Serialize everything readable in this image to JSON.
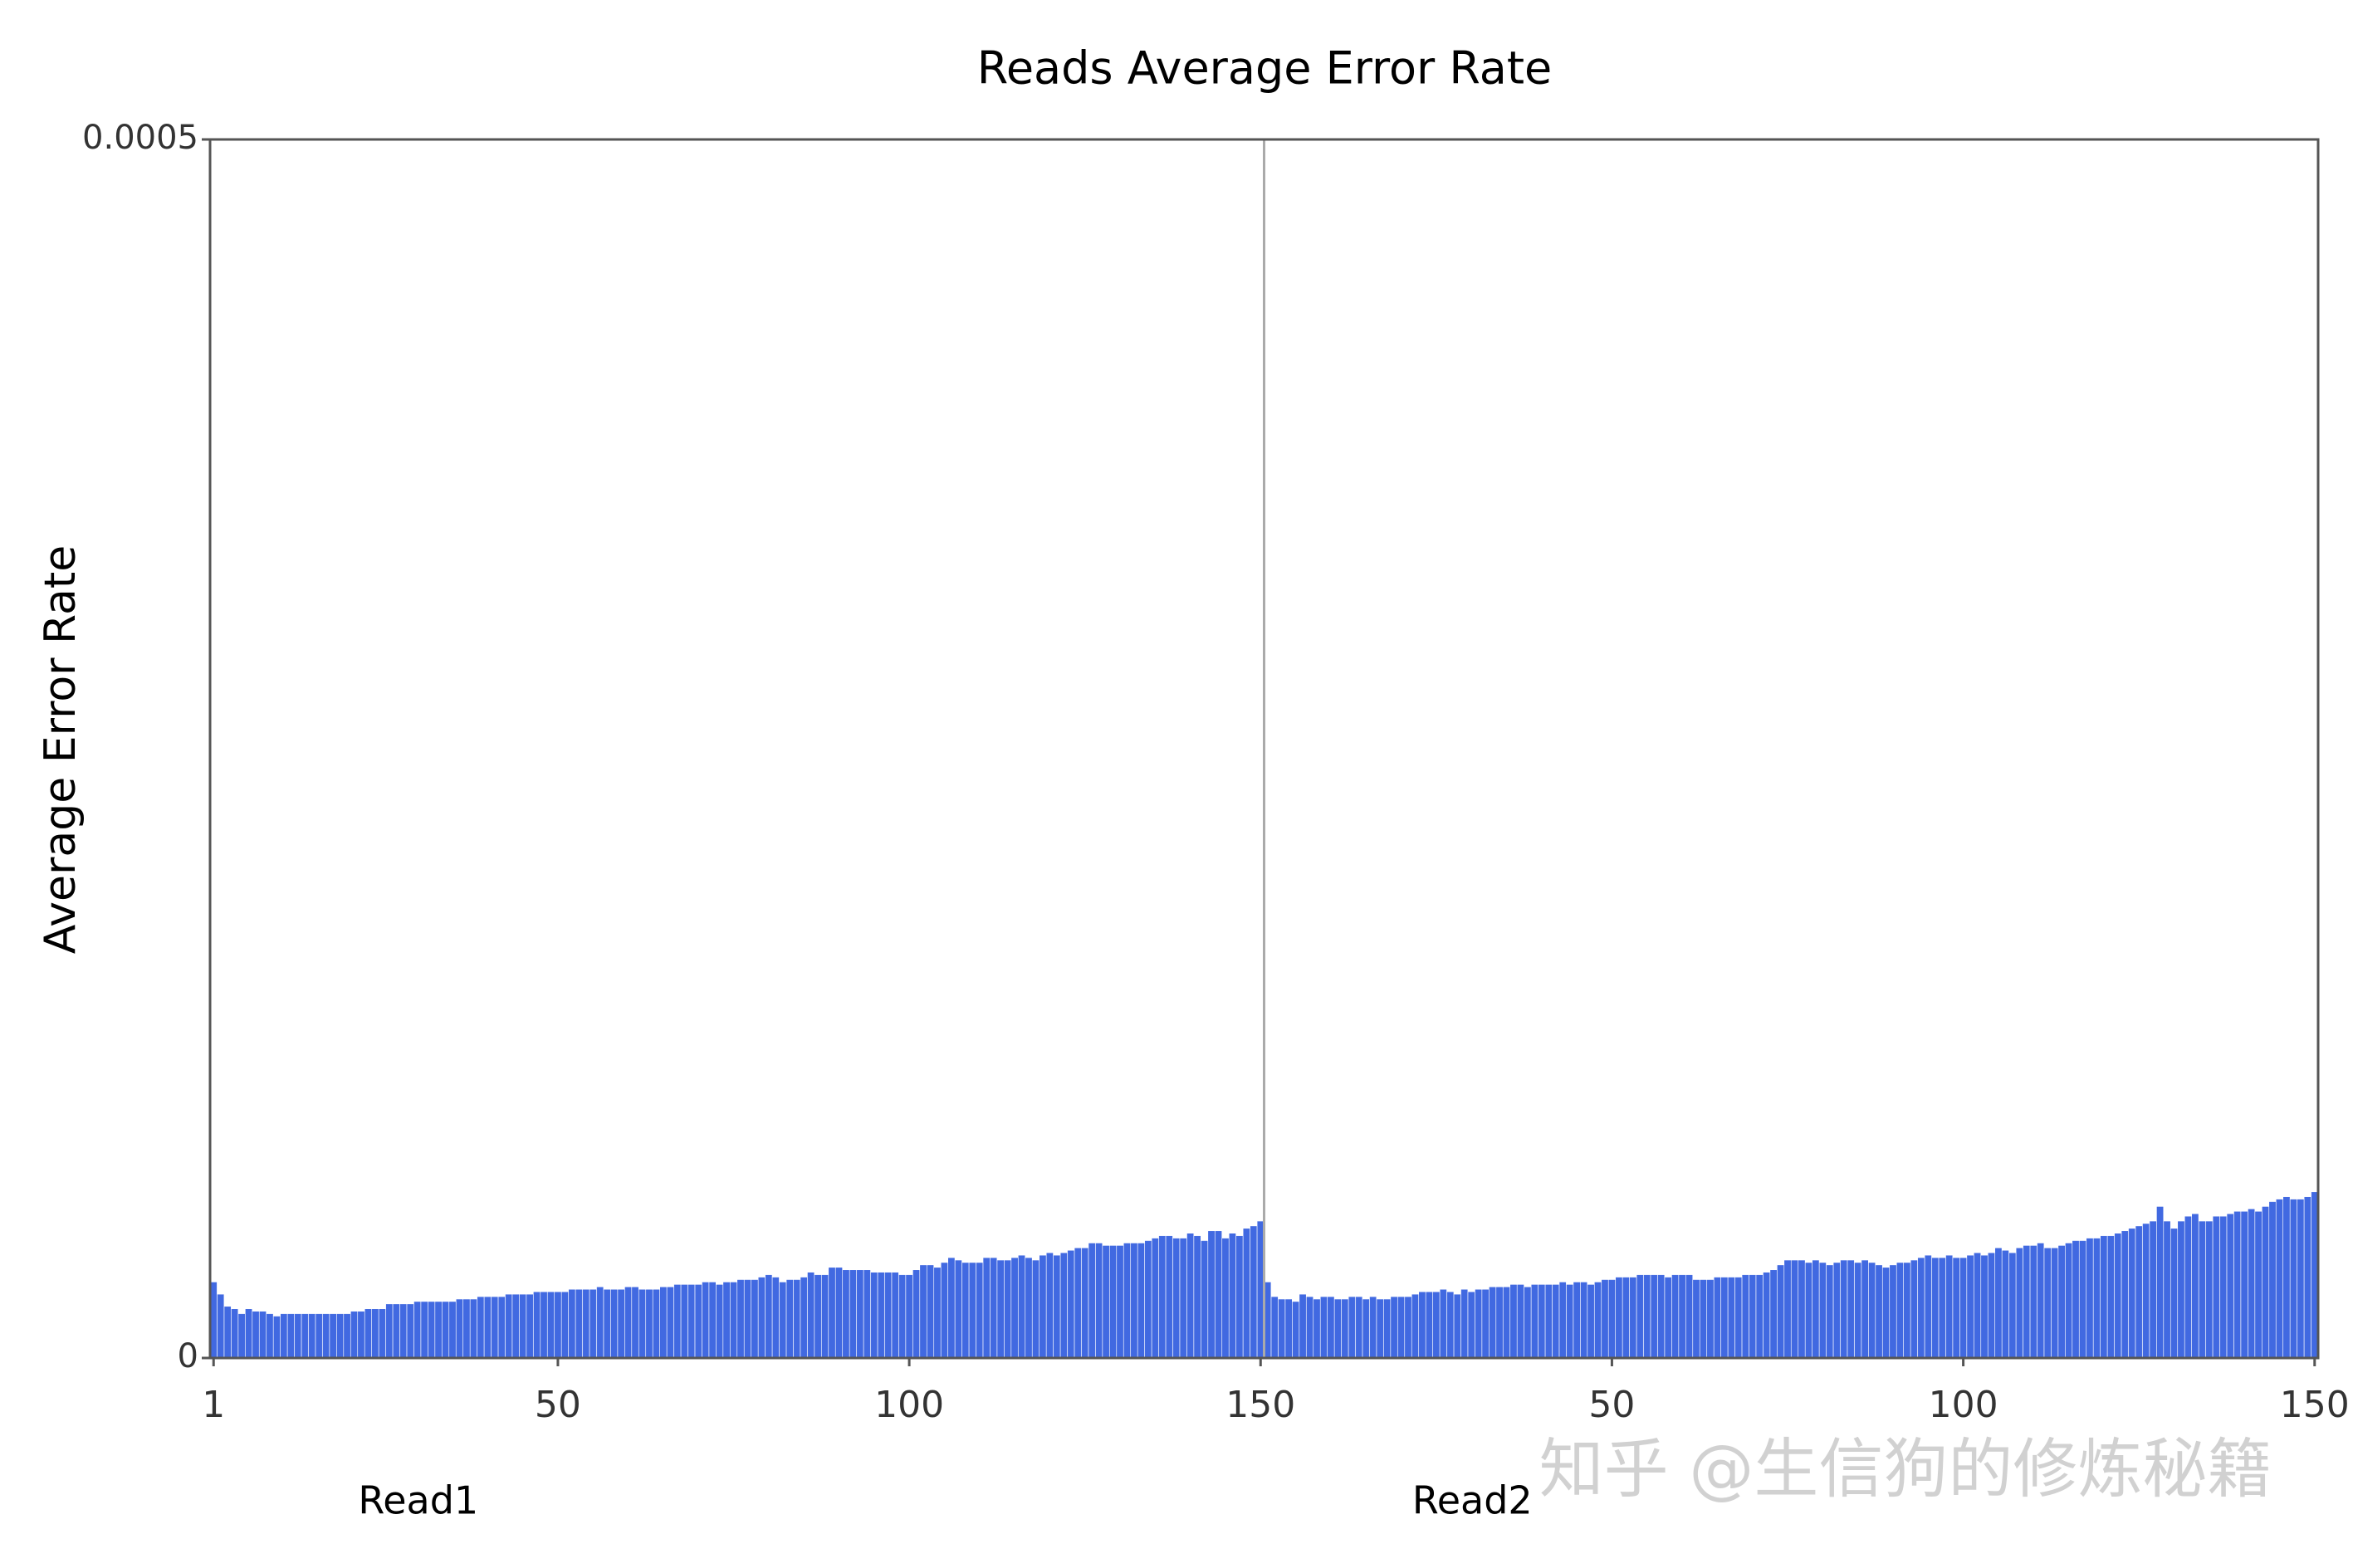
{
  "chart_data": {
    "type": "bar",
    "title": "Reads Average Error Rate",
    "y_label": "Average Error Rate",
    "color": "#4169e1",
    "ylim": [
      0,
      0.0005
    ],
    "yticks": [
      0,
      0.0005
    ],
    "watermark": "知乎 @生信狗的修炼秘籍",
    "panels": [
      {
        "name": "Read1",
        "xticks": [
          1,
          50,
          100,
          150
        ],
        "values": [
          3.1e-05,
          2.6e-05,
          2.1e-05,
          2e-05,
          1.8e-05,
          2e-05,
          1.9e-05,
          1.9e-05,
          1.8e-05,
          1.7e-05,
          1.8e-05,
          1.8e-05,
          1.8e-05,
          1.8e-05,
          1.8e-05,
          1.8e-05,
          1.8e-05,
          1.8e-05,
          1.8e-05,
          1.8e-05,
          1.9e-05,
          1.9e-05,
          2e-05,
          2e-05,
          2e-05,
          2.2e-05,
          2.2e-05,
          2.2e-05,
          2.2e-05,
          2.3e-05,
          2.3e-05,
          2.3e-05,
          2.3e-05,
          2.3e-05,
          2.3e-05,
          2.4e-05,
          2.4e-05,
          2.4e-05,
          2.5e-05,
          2.5e-05,
          2.5e-05,
          2.5e-05,
          2.6e-05,
          2.6e-05,
          2.6e-05,
          2.6e-05,
          2.7e-05,
          2.7e-05,
          2.7e-05,
          2.7e-05,
          2.7e-05,
          2.8e-05,
          2.8e-05,
          2.8e-05,
          2.8e-05,
          2.9e-05,
          2.8e-05,
          2.8e-05,
          2.8e-05,
          2.9e-05,
          2.9e-05,
          2.8e-05,
          2.8e-05,
          2.8e-05,
          2.9e-05,
          2.9e-05,
          3e-05,
          3e-05,
          3e-05,
          3e-05,
          3.1e-05,
          3.1e-05,
          3e-05,
          3.1e-05,
          3.1e-05,
          3.2e-05,
          3.2e-05,
          3.2e-05,
          3.3e-05,
          3.4e-05,
          3.3e-05,
          3.1e-05,
          3.2e-05,
          3.2e-05,
          3.3e-05,
          3.5e-05,
          3.4e-05,
          3.4e-05,
          3.7e-05,
          3.7e-05,
          3.6e-05,
          3.6e-05,
          3.6e-05,
          3.6e-05,
          3.5e-05,
          3.5e-05,
          3.5e-05,
          3.5e-05,
          3.4e-05,
          3.4e-05,
          3.6e-05,
          3.8e-05,
          3.8e-05,
          3.7e-05,
          3.9e-05,
          4.1e-05,
          4e-05,
          3.9e-05,
          3.9e-05,
          3.9e-05,
          4.1e-05,
          4.1e-05,
          4e-05,
          4e-05,
          4.1e-05,
          4.2e-05,
          4.1e-05,
          4e-05,
          4.2e-05,
          4.3e-05,
          4.2e-05,
          4.3e-05,
          4.4e-05,
          4.5e-05,
          4.5e-05,
          4.7e-05,
          4.7e-05,
          4.6e-05,
          4.6e-05,
          4.6e-05,
          4.7e-05,
          4.7e-05,
          4.7e-05,
          4.8e-05,
          4.9e-05,
          5e-05,
          5e-05,
          4.9e-05,
          4.9e-05,
          5.1e-05,
          5e-05,
          4.8e-05,
          5.2e-05,
          5.2e-05,
          4.9e-05,
          5.1e-05,
          5e-05,
          5.3e-05,
          5.4e-05,
          5.6e-05
        ]
      },
      {
        "name": "Read2",
        "xticks": [
          50,
          100,
          150
        ],
        "values": [
          3.1e-05,
          2.5e-05,
          2.4e-05,
          2.4e-05,
          2.3e-05,
          2.6e-05,
          2.5e-05,
          2.4e-05,
          2.5e-05,
          2.5e-05,
          2.4e-05,
          2.4e-05,
          2.5e-05,
          2.5e-05,
          2.4e-05,
          2.5e-05,
          2.4e-05,
          2.4e-05,
          2.5e-05,
          2.5e-05,
          2.5e-05,
          2.6e-05,
          2.7e-05,
          2.7e-05,
          2.7e-05,
          2.8e-05,
          2.7e-05,
          2.6e-05,
          2.8e-05,
          2.7e-05,
          2.8e-05,
          2.8e-05,
          2.9e-05,
          2.9e-05,
          2.9e-05,
          3e-05,
          3e-05,
          2.9e-05,
          3e-05,
          3e-05,
          3e-05,
          3e-05,
          3.1e-05,
          3e-05,
          3.1e-05,
          3.1e-05,
          3e-05,
          3.1e-05,
          3.2e-05,
          3.2e-05,
          3.3e-05,
          3.3e-05,
          3.3e-05,
          3.4e-05,
          3.4e-05,
          3.4e-05,
          3.4e-05,
          3.3e-05,
          3.4e-05,
          3.4e-05,
          3.4e-05,
          3.2e-05,
          3.2e-05,
          3.2e-05,
          3.3e-05,
          3.3e-05,
          3.3e-05,
          3.3e-05,
          3.4e-05,
          3.4e-05,
          3.4e-05,
          3.5e-05,
          3.6e-05,
          3.8e-05,
          4e-05,
          4e-05,
          4e-05,
          3.9e-05,
          4e-05,
          3.9e-05,
          3.8e-05,
          3.9e-05,
          4e-05,
          4e-05,
          3.9e-05,
          4e-05,
          3.9e-05,
          3.8e-05,
          3.7e-05,
          3.8e-05,
          3.9e-05,
          3.9e-05,
          4e-05,
          4.1e-05,
          4.2e-05,
          4.1e-05,
          4.1e-05,
          4.2e-05,
          4.1e-05,
          4.1e-05,
          4.2e-05,
          4.3e-05,
          4.2e-05,
          4.3e-05,
          4.5e-05,
          4.4e-05,
          4.3e-05,
          4.5e-05,
          4.6e-05,
          4.6e-05,
          4.7e-05,
          4.5e-05,
          4.5e-05,
          4.6e-05,
          4.7e-05,
          4.8e-05,
          4.8e-05,
          4.9e-05,
          4.9e-05,
          5e-05,
          5e-05,
          5.1e-05,
          5.2e-05,
          5.3e-05,
          5.4e-05,
          5.5e-05,
          5.6e-05,
          6.2e-05,
          5.6e-05,
          5.3e-05,
          5.6e-05,
          5.8e-05,
          5.9e-05,
          5.6e-05,
          5.6e-05,
          5.8e-05,
          5.8e-05,
          5.9e-05,
          6e-05,
          6e-05,
          6.1e-05,
          6e-05,
          6.2e-05,
          6.4e-05,
          6.5e-05,
          6.6e-05,
          6.5e-05,
          6.5e-05,
          6.6e-05,
          6.8e-05
        ]
      }
    ]
  }
}
